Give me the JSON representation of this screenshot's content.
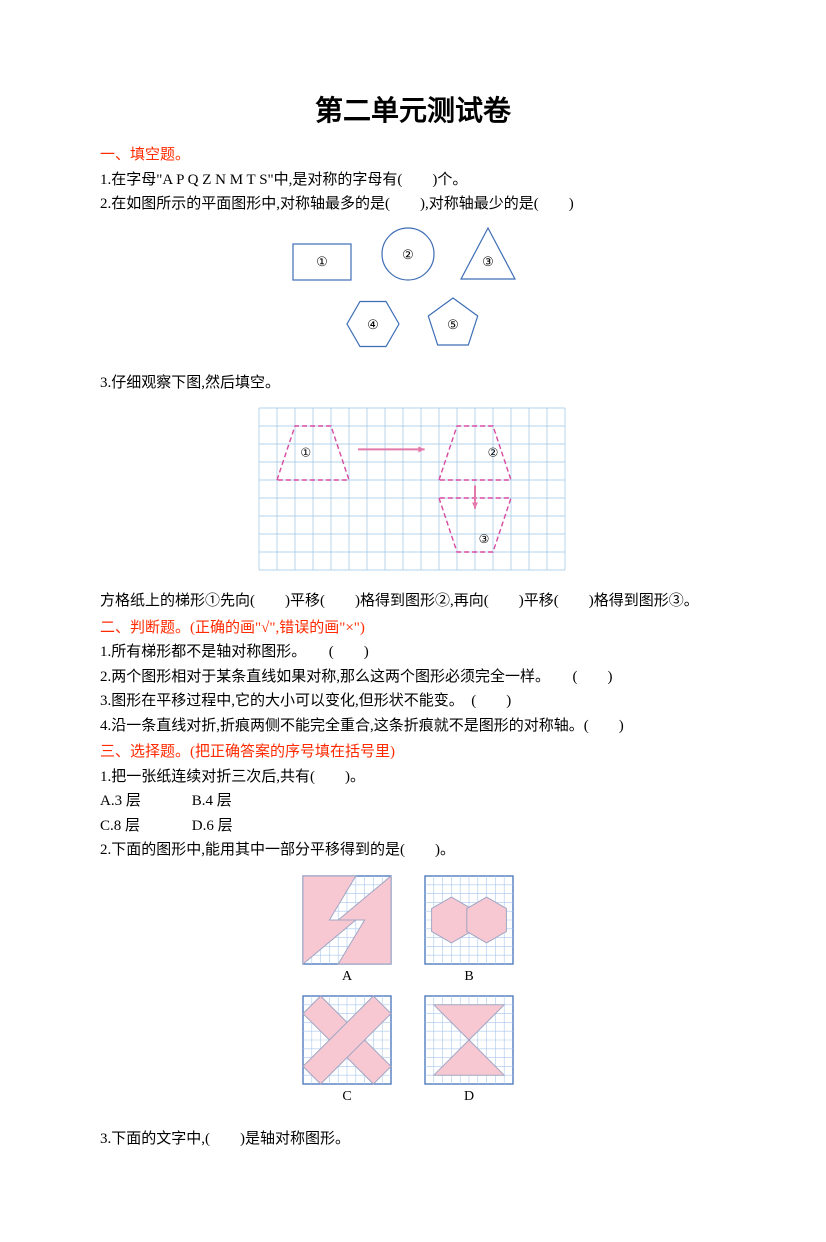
{
  "title": "第二单元测试卷",
  "s1": {
    "head": "一、填空题。",
    "q1": "1.在字母\"A  P  Q  Z  N  M  T  S\"中,是对称的字母有(　　)个。",
    "q2": "2.在如图所示的平面图形中,对称轴最多的是(　　),对称轴最少的是(　　)",
    "q3": "3.仔细观察下图,然后填空。",
    "q3_after": "方格纸上的梯形①先向(　　)平移(　　)格得到图形②,再向(　　)平移(　　)格得到图形③。",
    "fig1": {
      "stroke": "#3d6db5",
      "fill": "#ffffff",
      "rectLabel": "①",
      "circleLabel": "②",
      "triLabel": "③",
      "hexLabel": "④",
      "pentLabel": "⑤"
    },
    "fig2": {
      "gridStroke": "#9ac5e6",
      "shapeStroke": "#d74aa0",
      "arrowFill": "#e37aab",
      "label1": "①",
      "label2": "②",
      "label3": "③"
    }
  },
  "s2": {
    "head": "二、判断题。(正确的画\"√\",错误的画\"×\")",
    "q1": "1.所有梯形都不是轴对称图形。　　(　　)",
    "q2": "2.两个图形相对于某条直线如果对称,那么这两个图形必须完全一样。　　(　　)",
    "q3": "3.图形在平移过程中,它的大小可以变化,但形状不能变。　(　　)",
    "q4": "4.沿一条直线对折,折痕两侧不能完全重合,这条折痕就不是图形的对称轴。(　　)"
  },
  "s3": {
    "head": "三、选择题。(把正确答案的序号填在括号里)",
    "q1": "1.把一张纸连续对折三次后,共有(　　)。",
    "q1a": "A.3 层",
    "q1b": "B.4 层",
    "q1c": "C.8 层",
    "q1d": "D.6 层",
    "q2": "2.下面的图形中,能用其中一部分平移得到的是(　　)。",
    "fig3": {
      "grid": "#a9c8ec",
      "border": "#4f7abf",
      "fill": "#f7c8d2",
      "shapeStroke": "#a0a6c4",
      "labelA": "A",
      "labelB": "B",
      "labelC": "C",
      "labelD": "D"
    },
    "q3": "3.下面的文字中,(　　)是轴对称图形。"
  }
}
